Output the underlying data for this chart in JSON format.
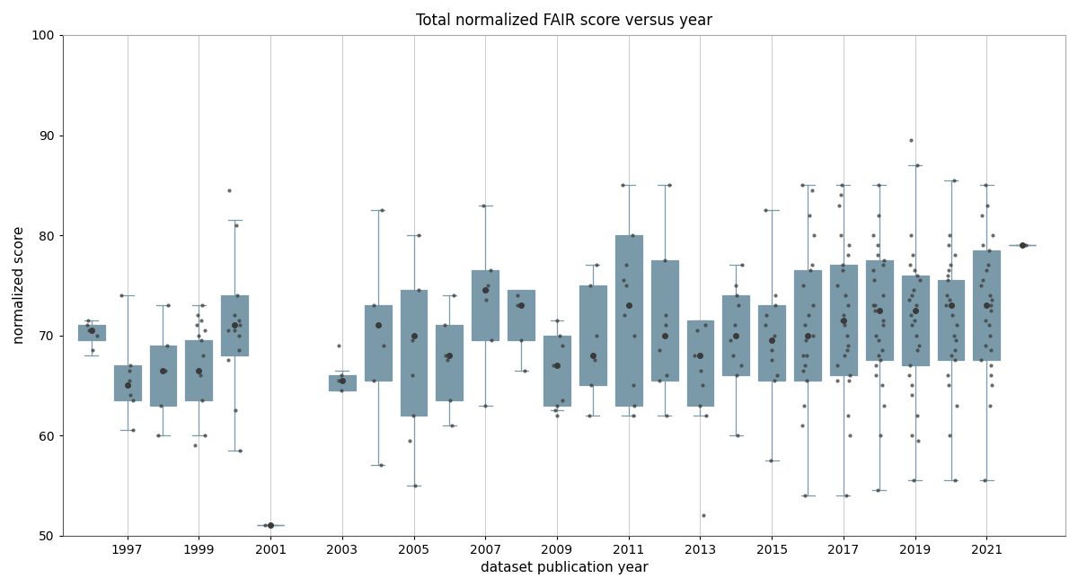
{
  "title": "Total normalized FAIR score versus year",
  "xlabel": "dataset publication year",
  "ylabel": "normalized score",
  "ylim": [
    50,
    100
  ],
  "xlim": [
    1995.2,
    2023.2
  ],
  "yticks": [
    50,
    60,
    70,
    80,
    90,
    100
  ],
  "xtick_years": [
    1997,
    1999,
    2001,
    2003,
    2005,
    2007,
    2009,
    2011,
    2013,
    2015,
    2017,
    2019,
    2021
  ],
  "box_color": "#b8d4e3",
  "box_edge_color": "#7a9aaa",
  "median_color": "#7a9aaa",
  "whisker_color": "#7a9aaa",
  "cap_color": "#7a9aaa",
  "point_color": "#3a3a3a",
  "mean_color": "#3a3a3a",
  "background_color": "#ffffff",
  "grid_color": "#cccccc",
  "years": [
    1996,
    1997,
    1998,
    1999,
    2000,
    2001,
    2003,
    2004,
    2005,
    2006,
    2007,
    2008,
    2009,
    2010,
    2011,
    2012,
    2013,
    2014,
    2015,
    2016,
    2017,
    2018,
    2019,
    2020,
    2021,
    2022
  ],
  "box_stats": {
    "1996": {
      "q1": 69.5,
      "median": 70.5,
      "q3": 71.0,
      "whislo": 68.0,
      "whishi": 71.5,
      "mean": 70.5,
      "points": [
        70.0,
        70.5,
        71.0,
        71.5,
        68.5
      ]
    },
    "1997": {
      "q1": 63.5,
      "median": 65.0,
      "q3": 67.0,
      "whislo": 60.5,
      "whishi": 74.0,
      "mean": 65.0,
      "points": [
        65.0,
        63.5,
        65.5,
        64.0,
        66.5,
        67.0,
        60.5,
        74.0
      ]
    },
    "1998": {
      "q1": 63.0,
      "median": 66.5,
      "q3": 69.0,
      "whislo": 60.0,
      "whishi": 73.0,
      "mean": 66.5,
      "points": [
        60.0,
        63.0,
        66.5,
        69.0,
        73.0
      ]
    },
    "1999": {
      "q1": 63.5,
      "median": 66.0,
      "q3": 69.5,
      "whislo": 60.0,
      "whishi": 73.0,
      "mean": 66.5,
      "points": [
        60.0,
        63.5,
        66.0,
        69.5,
        70.0,
        71.0,
        72.0,
        73.0,
        70.5,
        71.5,
        68.0,
        59.0
      ]
    },
    "2000": {
      "q1": 68.0,
      "median": 70.5,
      "q3": 74.0,
      "whislo": 58.5,
      "whishi": 81.5,
      "mean": 71.0,
      "points": [
        67.5,
        70.0,
        71.0,
        70.5,
        72.0,
        62.5,
        81.0,
        84.5,
        58.5,
        74.0,
        68.5,
        70.5,
        71.5
      ]
    },
    "2001": {
      "q1": 51.0,
      "median": 51.0,
      "q3": 51.0,
      "whislo": 51.0,
      "whishi": 51.0,
      "mean": 51.0,
      "points": [
        51.0
      ]
    },
    "2003": {
      "q1": 64.5,
      "median": 65.5,
      "q3": 66.0,
      "whislo": 64.5,
      "whishi": 66.5,
      "mean": 65.5,
      "points": [
        65.5,
        69.0,
        64.5,
        66.0
      ]
    },
    "2004": {
      "q1": 65.5,
      "median": 71.0,
      "q3": 73.0,
      "whislo": 57.0,
      "whishi": 82.5,
      "mean": 71.0,
      "points": [
        57.0,
        65.5,
        71.0,
        73.0,
        82.5,
        69.0
      ]
    },
    "2005": {
      "q1": 62.0,
      "median": 69.5,
      "q3": 74.5,
      "whislo": 55.0,
      "whishi": 80.0,
      "mean": 70.0,
      "points": [
        55.0,
        59.5,
        62.0,
        69.5,
        74.5,
        80.0,
        66.0
      ]
    },
    "2006": {
      "q1": 63.5,
      "median": 68.0,
      "q3": 71.0,
      "whislo": 61.0,
      "whishi": 74.0,
      "mean": 68.0,
      "points": [
        67.5,
        63.5,
        68.0,
        71.0,
        61.0,
        74.0
      ]
    },
    "2007": {
      "q1": 69.5,
      "median": 74.5,
      "q3": 76.5,
      "whislo": 63.0,
      "whishi": 83.0,
      "mean": 74.5,
      "points": [
        73.5,
        69.5,
        74.5,
        76.5,
        63.0,
        83.0,
        75.0
      ]
    },
    "2008": {
      "q1": 69.5,
      "median": 73.0,
      "q3": 74.5,
      "whislo": 66.5,
      "whishi": 74.0,
      "mean": 73.0,
      "points": [
        69.5,
        73.0,
        74.0,
        66.5
      ]
    },
    "2009": {
      "q1": 63.0,
      "median": 67.0,
      "q3": 70.0,
      "whislo": 62.5,
      "whishi": 71.5,
      "mean": 67.0,
      "points": [
        62.0,
        63.5,
        69.0,
        63.0,
        67.0,
        70.0,
        62.5,
        71.5
      ]
    },
    "2010": {
      "q1": 65.0,
      "median": 67.5,
      "q3": 75.0,
      "whislo": 62.0,
      "whishi": 77.0,
      "mean": 68.0,
      "points": [
        62.0,
        65.0,
        67.5,
        75.0,
        77.0,
        70.0
      ]
    },
    "2011": {
      "q1": 63.0,
      "median": 75.0,
      "q3": 80.0,
      "whislo": 62.0,
      "whishi": 85.0,
      "mean": 73.0,
      "points": [
        65.0,
        70.0,
        75.5,
        63.0,
        75.0,
        80.0,
        62.0,
        85.0,
        72.0,
        77.0
      ]
    },
    "2012": {
      "q1": 65.5,
      "median": 68.5,
      "q3": 77.5,
      "whislo": 62.0,
      "whishi": 85.0,
      "mean": 70.0,
      "points": [
        71.0,
        65.5,
        68.5,
        77.5,
        62.0,
        85.0,
        66.0,
        72.0
      ]
    },
    "2013": {
      "q1": 63.0,
      "median": 68.0,
      "q3": 71.5,
      "whislo": 62.0,
      "whishi": 71.5,
      "mean": 68.0,
      "points": [
        52.0,
        70.5,
        71.0,
        63.0,
        68.0,
        62.0,
        65.0,
        66.5
      ]
    },
    "2014": {
      "q1": 66.0,
      "median": 69.5,
      "q3": 74.0,
      "whislo": 60.0,
      "whishi": 77.0,
      "mean": 70.0,
      "points": [
        73.0,
        75.0,
        67.0,
        66.0,
        69.5,
        74.0,
        60.0,
        77.0,
        71.0,
        68.0
      ]
    },
    "2015": {
      "q1": 65.5,
      "median": 70.0,
      "q3": 73.0,
      "whislo": 57.5,
      "whishi": 82.5,
      "mean": 69.5,
      "points": [
        72.0,
        68.5,
        67.5,
        71.0,
        65.5,
        70.0,
        73.0,
        57.5,
        82.5,
        66.0,
        74.0
      ]
    },
    "2016": {
      "q1": 65.5,
      "median": 68.5,
      "q3": 76.5,
      "whislo": 54.0,
      "whishi": 85.0,
      "mean": 70.0,
      "points": [
        68.0,
        71.0,
        82.0,
        69.5,
        75.0,
        66.5,
        84.5,
        67.0,
        72.0,
        68.0,
        65.5,
        70.0,
        76.5,
        54.0,
        85.0,
        63.0,
        73.0,
        77.0,
        80.0,
        61.0
      ]
    },
    "2017": {
      "q1": 66.0,
      "median": 71.5,
      "q3": 77.0,
      "whislo": 54.0,
      "whishi": 85.0,
      "mean": 71.5,
      "points": [
        71.0,
        72.0,
        65.5,
        71.5,
        76.5,
        68.0,
        74.0,
        69.0,
        70.0,
        77.0,
        68.5,
        65.5,
        84.0,
        66.0,
        78.0,
        54.0,
        85.0,
        62.0,
        73.0,
        79.0,
        67.0,
        75.0,
        80.0,
        60.0,
        83.0
      ]
    },
    "2018": {
      "q1": 67.5,
      "median": 72.5,
      "q3": 77.5,
      "whislo": 54.5,
      "whishi": 85.0,
      "mean": 72.5,
      "points": [
        73.0,
        71.0,
        75.5,
        68.5,
        69.5,
        76.5,
        77.0,
        74.0,
        72.5,
        73.0,
        71.5,
        70.0,
        67.0,
        68.0,
        66.0,
        67.5,
        77.5,
        54.5,
        85.0,
        63.0,
        78.0,
        80.0,
        60.0,
        82.0,
        65.0,
        79.0
      ]
    },
    "2019": {
      "q1": 67.0,
      "median": 72.5,
      "q3": 76.0,
      "whislo": 55.5,
      "whishi": 87.0,
      "mean": 72.5,
      "points": [
        75.5,
        76.5,
        73.0,
        68.5,
        71.5,
        70.0,
        65.0,
        59.5,
        74.5,
        72.0,
        60.0,
        74.0,
        89.5,
        69.0,
        71.0,
        67.0,
        76.0,
        55.5,
        87.0,
        62.0,
        78.0,
        80.0,
        64.0,
        77.0,
        66.0,
        73.5
      ]
    },
    "2020": {
      "q1": 67.5,
      "median": 73.0,
      "q3": 75.5,
      "whislo": 55.5,
      "whishi": 85.5,
      "mean": 73.0,
      "points": [
        76.0,
        75.5,
        72.0,
        69.5,
        68.5,
        70.0,
        76.5,
        73.5,
        74.0,
        71.0,
        68.0,
        55.5,
        65.0,
        67.5,
        73.0,
        85.5,
        63.0,
        78.0,
        79.0,
        66.0,
        77.0,
        80.0,
        60.0
      ]
    },
    "2021": {
      "q1": 67.5,
      "median": 72.5,
      "q3": 78.5,
      "whislo": 55.5,
      "whishi": 85.0,
      "mean": 73.0,
      "points": [
        75.0,
        77.0,
        70.0,
        68.5,
        71.5,
        72.5,
        76.5,
        74.0,
        79.0,
        69.0,
        67.0,
        73.0,
        75.5,
        67.5,
        78.5,
        55.5,
        85.0,
        63.0,
        80.0,
        65.0,
        82.0,
        66.0,
        71.0,
        83.0,
        73.5
      ]
    },
    "2022": {
      "q1": 79.0,
      "median": 79.0,
      "q3": 79.0,
      "whislo": 79.0,
      "whishi": 79.0,
      "mean": 79.0,
      "points": [
        79.0
      ]
    }
  }
}
